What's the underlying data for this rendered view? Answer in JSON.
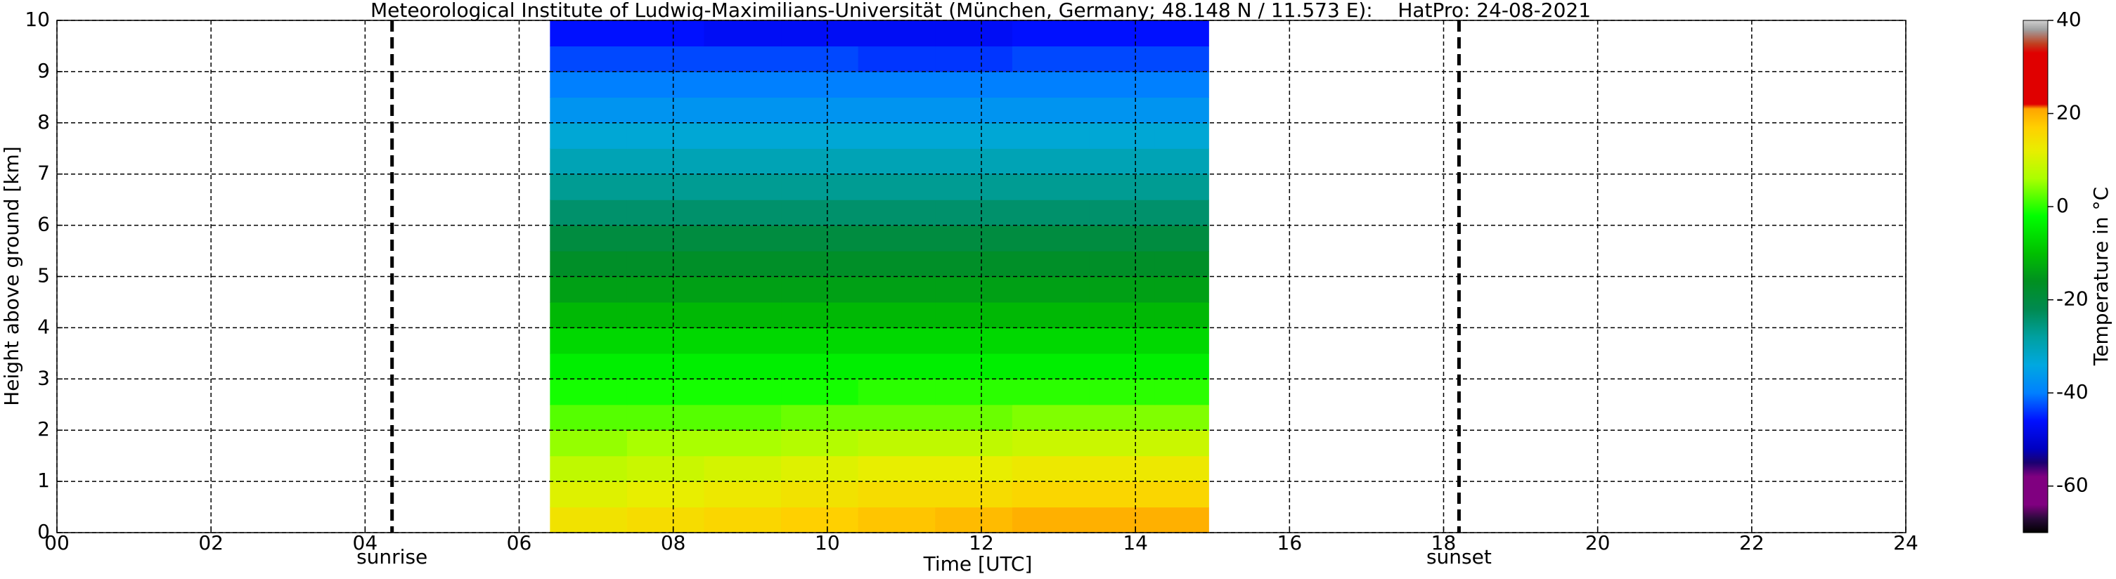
{
  "chart_data": {
    "type": "heatmap",
    "title": "Meteorological Institute of Ludwig-Maximilians-Universität (München, Germany; 48.148 N / 11.573 E):    HatPro: 24-08-2021",
    "x_label": "Time [UTC]",
    "y_label": "Height above ground [km]",
    "colorbar_label": "Temperature in °C",
    "x": [
      6.9,
      7.9,
      8.9,
      9.9,
      10.9,
      11.9,
      12.9,
      13.9,
      14.6
    ],
    "y": [
      0.25,
      0.75,
      1.25,
      1.75,
      2.25,
      2.75,
      3.25,
      3.75,
      4.25,
      4.75,
      5.25,
      5.75,
      6.25,
      6.75,
      7.25,
      7.75,
      8.25,
      8.75,
      9.25,
      9.75
    ],
    "values": [
      [
        14,
        15,
        16,
        17,
        18,
        19,
        20,
        20,
        20
      ],
      [
        11,
        12,
        13,
        14,
        15,
        15,
        16,
        16,
        16
      ],
      [
        8,
        9,
        10,
        11,
        12,
        12,
        13,
        13,
        13
      ],
      [
        5,
        6,
        6,
        7,
        8,
        8,
        9,
        9,
        9
      ],
      [
        2,
        2,
        2,
        3,
        3,
        3,
        4,
        4,
        4
      ],
      [
        -1,
        -1,
        -1,
        -1,
        0,
        0,
        0,
        0,
        0
      ],
      [
        -4,
        -4,
        -4,
        -4,
        -4,
        -4,
        -4,
        -4,
        -4
      ],
      [
        -7,
        -7,
        -7,
        -7,
        -7,
        -7,
        -7,
        -7,
        -7
      ],
      [
        -11,
        -11,
        -11,
        -11,
        -11,
        -11,
        -11,
        -11,
        -11
      ],
      [
        -14,
        -14,
        -14,
        -14,
        -14,
        -14,
        -14,
        -14,
        -14
      ],
      [
        -17,
        -17,
        -17,
        -17,
        -17,
        -17,
        -17,
        -17,
        -17
      ],
      [
        -20,
        -20,
        -20,
        -20,
        -20,
        -20,
        -20,
        -20,
        -20
      ],
      [
        -24,
        -24,
        -24,
        -24,
        -24,
        -24,
        -24,
        -24,
        -24
      ],
      [
        -27,
        -27,
        -27,
        -27,
        -27,
        -27,
        -27,
        -27,
        -27
      ],
      [
        -30,
        -30,
        -30,
        -30,
        -30,
        -30,
        -30,
        -30,
        -30
      ],
      [
        -33,
        -33,
        -33,
        -33,
        -33,
        -33,
        -33,
        -33,
        -33
      ],
      [
        -37,
        -37,
        -37,
        -37,
        -37,
        -37,
        -37,
        -37,
        -37
      ],
      [
        -40,
        -40,
        -40,
        -40,
        -40,
        -40,
        -40,
        -40,
        -40
      ],
      [
        -43,
        -43,
        -43,
        -43,
        -44,
        -44,
        -43,
        -43,
        -43
      ],
      [
        -46,
        -46,
        -47,
        -47,
        -47,
        -47,
        -46,
        -46,
        -46
      ]
    ],
    "xlim": [
      0,
      24
    ],
    "ylim": [
      0,
      10
    ],
    "xticks": [
      {
        "value": 0,
        "label": "00"
      },
      {
        "value": 2,
        "label": "02"
      },
      {
        "value": 4,
        "label": "04"
      },
      {
        "value": 6,
        "label": "06"
      },
      {
        "value": 8,
        "label": "08"
      },
      10,
      12,
      14,
      16,
      18,
      20,
      22,
      24
    ],
    "yticks": [
      0,
      1,
      2,
      3,
      4,
      5,
      6,
      7,
      8,
      9,
      10
    ],
    "clim": [
      -70,
      40
    ],
    "cticks": [
      -60,
      -40,
      -20,
      0,
      20,
      40
    ],
    "colormap": [
      {
        "value": -70,
        "color": "#000000"
      },
      {
        "value": -67,
        "color": "#2a0a3a"
      },
      {
        "value": -64,
        "color": "#800080"
      },
      {
        "value": -58,
        "color": "#800080"
      },
      {
        "value": -55,
        "color": "#1a0070"
      },
      {
        "value": -52,
        "color": "#0000c0"
      },
      {
        "value": -46,
        "color": "#0010ff"
      },
      {
        "value": -40,
        "color": "#0080ff"
      },
      {
        "value": -34,
        "color": "#00a8e0"
      },
      {
        "value": -28,
        "color": "#00a0a0"
      },
      {
        "value": -22,
        "color": "#008a50"
      },
      {
        "value": -16,
        "color": "#009020"
      },
      {
        "value": -10,
        "color": "#00c000"
      },
      {
        "value": -2,
        "color": "#00ff00"
      },
      {
        "value": 6,
        "color": "#aaff00"
      },
      {
        "value": 12,
        "color": "#e8ee00"
      },
      {
        "value": 17,
        "color": "#ffd000"
      },
      {
        "value": 21,
        "color": "#ffa500"
      },
      {
        "value": 22,
        "color": "#e00000"
      },
      {
        "value": 33,
        "color": "#e00000"
      },
      {
        "value": 35,
        "color": "#c04020"
      },
      {
        "value": 38,
        "color": "#a0a0a0"
      },
      {
        "value": 40,
        "color": "#d0d0d0"
      }
    ],
    "grid": true,
    "annotations": [
      {
        "text": "sunrise",
        "x": 4.35
      },
      {
        "text": "sunset",
        "x": 18.2
      }
    ]
  }
}
